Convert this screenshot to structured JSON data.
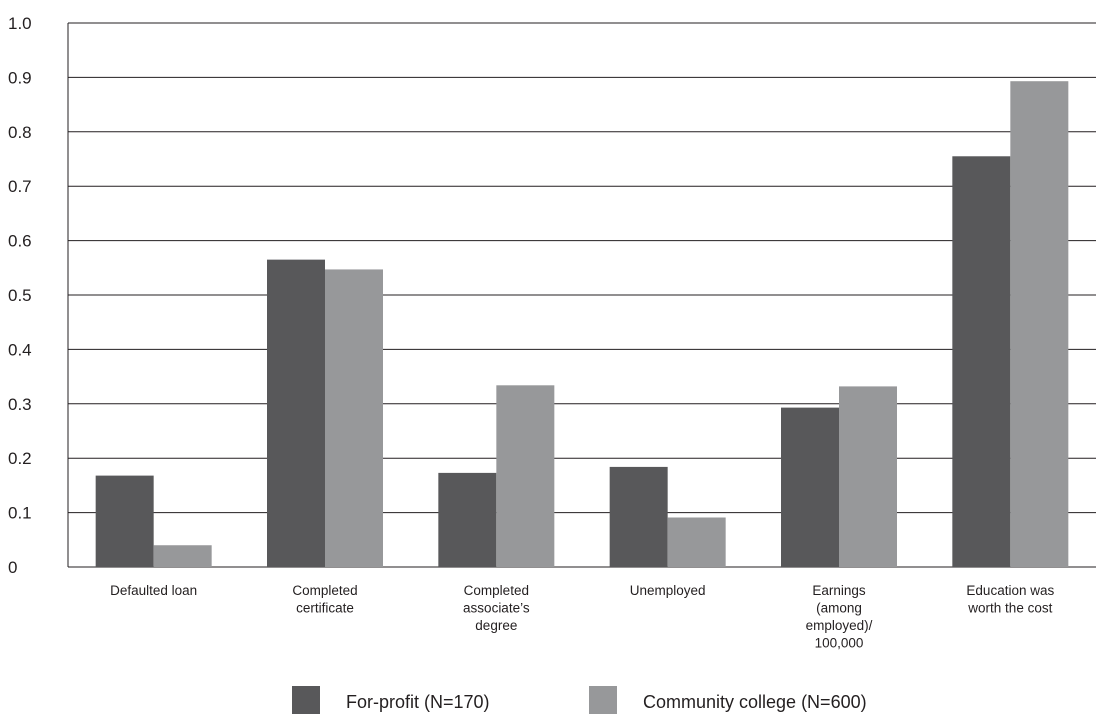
{
  "chart_data": {
    "type": "bar",
    "categories": [
      [
        "Defaulted loan"
      ],
      [
        "Completed",
        "certificate"
      ],
      [
        "Completed",
        "associate’s",
        "degree"
      ],
      [
        "Unemployed"
      ],
      [
        "Earnings",
        "(among",
        "employed)/",
        "100,000"
      ],
      [
        "Education was",
        "worth the cost"
      ]
    ],
    "series": [
      {
        "name": "For-profit (N=170)",
        "color": "#58585a",
        "values": [
          0.168,
          0.565,
          0.173,
          0.184,
          0.293,
          0.755
        ]
      },
      {
        "name": "Community college (N=600)",
        "color": "#97989a",
        "values": [
          0.04,
          0.547,
          0.334,
          0.091,
          0.332,
          0.893
        ]
      }
    ],
    "ylim": [
      0,
      1.0
    ],
    "yticks": [
      "0",
      "0.1",
      "0.2",
      "0.3",
      "0.4",
      "0.5",
      "0.6",
      "0.7",
      "0.8",
      "0.9",
      "1.0"
    ],
    "grid": true,
    "legend_position": "bottom"
  }
}
